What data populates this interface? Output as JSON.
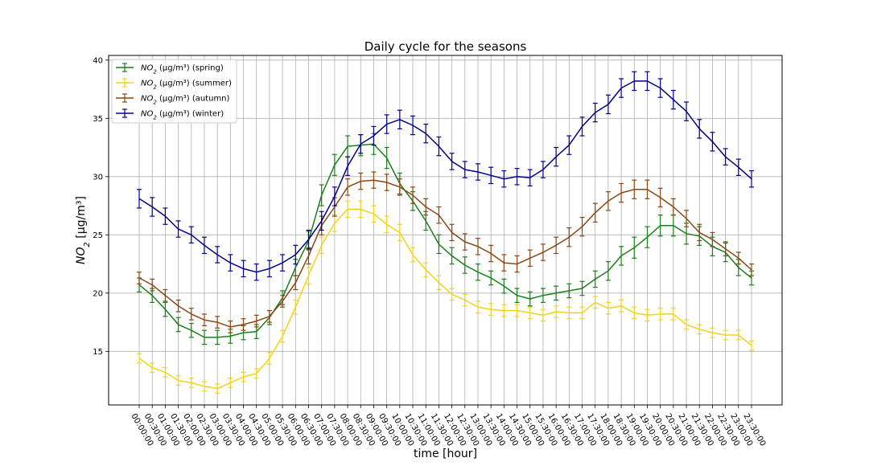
{
  "chart_data": {
    "type": "line",
    "title": "Daily cycle for the seasons",
    "xlabel": "time [hour]",
    "ylabel": "NO₂ [µg/m³]",
    "ylabel_parts": {
      "italic": "NO",
      "sub": "2",
      "rest": " [µg/m³]"
    },
    "ylim": [
      10.4,
      40.4
    ],
    "yticks": [
      15,
      20,
      25,
      30,
      35,
      40
    ],
    "grid": true,
    "legend_position": "top-left",
    "categories": [
      "00:00:00",
      "00:30:00",
      "01:00:00",
      "01:30:00",
      "02:00:00",
      "02:30:00",
      "03:00:00",
      "03:30:00",
      "04:00:00",
      "04:30:00",
      "05:00:00",
      "05:30:00",
      "06:00:00",
      "06:30:00",
      "07:00:00",
      "07:30:00",
      "08:00:00",
      "08:30:00",
      "09:00:00",
      "09:30:00",
      "10:00:00",
      "10:30:00",
      "11:00:00",
      "11:30:00",
      "12:00:00",
      "12:30:00",
      "13:00:00",
      "13:30:00",
      "14:00:00",
      "14:30:00",
      "15:00:00",
      "15:30:00",
      "16:00:00",
      "16:30:00",
      "17:00:00",
      "17:30:00",
      "18:00:00",
      "18:30:00",
      "19:00:00",
      "19:30:00",
      "20:00:00",
      "20:30:00",
      "21:00:00",
      "21:30:00",
      "22:00:00",
      "22:30:00",
      "23:00:00",
      "23:30:00"
    ],
    "series": [
      {
        "name": "NO₂ (µg/m³) (spring)",
        "legend_parts": {
          "italic": "NO",
          "sub": "2",
          "rest": " (µg/m³) (spring)"
        },
        "color": "#1a7f1a",
        "values": [
          20.7,
          19.8,
          18.6,
          17.3,
          16.8,
          16.2,
          16.2,
          16.3,
          16.6,
          16.7,
          17.9,
          19.6,
          22.2,
          24.5,
          28.4,
          31.0,
          32.6,
          32.7,
          32.8,
          31.6,
          29.4,
          27.9,
          26.2,
          24.2,
          23.2,
          22.4,
          21.8,
          21.3,
          20.6,
          19.8,
          19.5,
          19.8,
          20.0,
          20.2,
          20.4,
          21.2,
          21.9,
          23.2,
          23.9,
          24.8,
          25.8,
          25.8,
          25.1,
          24.9,
          24.0,
          23.5,
          22.2,
          21.3
        ],
        "errors": [
          0.6,
          0.6,
          0.6,
          0.6,
          0.6,
          0.6,
          0.6,
          0.6,
          0.6,
          0.6,
          0.6,
          0.6,
          0.7,
          0.8,
          0.9,
          0.9,
          0.9,
          0.9,
          0.9,
          0.9,
          0.9,
          0.8,
          0.8,
          0.8,
          0.7,
          0.7,
          0.7,
          0.6,
          0.6,
          0.6,
          0.6,
          0.6,
          0.6,
          0.6,
          0.6,
          0.7,
          0.8,
          0.8,
          0.9,
          0.9,
          0.9,
          0.9,
          0.9,
          0.8,
          0.8,
          0.8,
          0.7,
          0.6
        ]
      },
      {
        "name": "NO₂ (µg/m³) (summer)",
        "legend_parts": {
          "italic": "NO",
          "sub": "2",
          "rest": " (µg/m³) (summer)"
        },
        "color": "#f2d21c",
        "values": [
          14.4,
          13.6,
          13.2,
          12.5,
          12.3,
          12.0,
          11.8,
          12.3,
          12.8,
          13.1,
          14.4,
          16.3,
          18.8,
          21.5,
          24.1,
          26.0,
          27.2,
          27.2,
          26.8,
          25.9,
          25.2,
          23.3,
          22.0,
          20.9,
          19.9,
          19.4,
          18.8,
          18.6,
          18.5,
          18.5,
          18.3,
          18.1,
          18.4,
          18.3,
          18.3,
          19.2,
          18.7,
          18.9,
          18.3,
          18.1,
          18.2,
          18.2,
          17.3,
          16.9,
          16.6,
          16.4,
          16.4,
          15.5
        ],
        "errors": [
          0.4,
          0.4,
          0.4,
          0.4,
          0.4,
          0.4,
          0.4,
          0.4,
          0.4,
          0.4,
          0.5,
          0.5,
          0.6,
          0.7,
          0.7,
          0.7,
          0.7,
          0.7,
          0.7,
          0.7,
          0.7,
          0.6,
          0.6,
          0.6,
          0.5,
          0.5,
          0.5,
          0.5,
          0.5,
          0.5,
          0.5,
          0.5,
          0.5,
          0.5,
          0.5,
          0.5,
          0.5,
          0.5,
          0.5,
          0.5,
          0.5,
          0.5,
          0.4,
          0.4,
          0.4,
          0.4,
          0.4,
          0.4
        ]
      },
      {
        "name": "NO₂ (µg/m³) (autumn)",
        "legend_parts": {
          "italic": "NO",
          "sub": "2",
          "rest": " (µg/m³) (autumn)"
        },
        "color": "#8b4513",
        "values": [
          21.3,
          20.7,
          19.8,
          18.9,
          18.2,
          17.7,
          17.5,
          17.1,
          17.3,
          17.6,
          18.0,
          19.3,
          20.9,
          23.2,
          25.8,
          27.4,
          29.1,
          29.6,
          29.7,
          29.5,
          29.1,
          28.4,
          27.4,
          26.7,
          25.2,
          24.4,
          24.0,
          23.4,
          22.6,
          22.5,
          23.0,
          23.5,
          24.1,
          24.8,
          25.7,
          26.9,
          27.9,
          28.6,
          28.9,
          28.9,
          28.2,
          27.4,
          26.4,
          25.2,
          24.6,
          23.8,
          23.0,
          22.0
        ],
        "errors": [
          0.5,
          0.5,
          0.5,
          0.5,
          0.5,
          0.5,
          0.5,
          0.5,
          0.5,
          0.5,
          0.5,
          0.5,
          0.6,
          0.7,
          0.8,
          0.8,
          0.7,
          0.7,
          0.7,
          0.7,
          0.7,
          0.7,
          0.7,
          0.7,
          0.7,
          0.7,
          0.7,
          0.7,
          0.7,
          0.7,
          0.7,
          0.7,
          0.7,
          0.8,
          0.8,
          0.8,
          0.8,
          0.8,
          0.8,
          0.8,
          0.8,
          0.7,
          0.7,
          0.7,
          0.6,
          0.6,
          0.5,
          0.5
        ]
      },
      {
        "name": "NO₂ (µg/m³) (winter)",
        "legend_parts": {
          "italic": "NO",
          "sub": "2",
          "rest": " (µg/m³) (winter)"
        },
        "color": "#00008b",
        "values": [
          28.1,
          27.4,
          26.6,
          25.5,
          25.0,
          24.1,
          23.3,
          22.6,
          22.1,
          21.8,
          22.1,
          22.6,
          23.3,
          24.6,
          26.2,
          28.3,
          30.9,
          32.8,
          33.5,
          34.5,
          34.9,
          34.4,
          33.7,
          32.6,
          31.3,
          30.6,
          30.4,
          30.1,
          29.8,
          30.0,
          29.9,
          30.6,
          31.7,
          32.7,
          34.3,
          35.5,
          36.2,
          37.6,
          38.2,
          38.2,
          37.6,
          36.6,
          35.6,
          34.1,
          33.0,
          31.7,
          30.8,
          29.8
        ],
        "errors": [
          0.8,
          0.8,
          0.7,
          0.7,
          0.7,
          0.7,
          0.7,
          0.7,
          0.7,
          0.7,
          0.7,
          0.7,
          0.8,
          0.8,
          0.8,
          0.8,
          0.8,
          0.8,
          0.8,
          0.8,
          0.8,
          0.8,
          0.8,
          0.8,
          0.7,
          0.7,
          0.7,
          0.7,
          0.7,
          0.7,
          0.7,
          0.7,
          0.8,
          0.8,
          0.8,
          0.8,
          0.8,
          0.8,
          0.8,
          0.8,
          0.8,
          0.8,
          0.8,
          0.8,
          0.8,
          0.7,
          0.7,
          0.7
        ]
      }
    ]
  }
}
